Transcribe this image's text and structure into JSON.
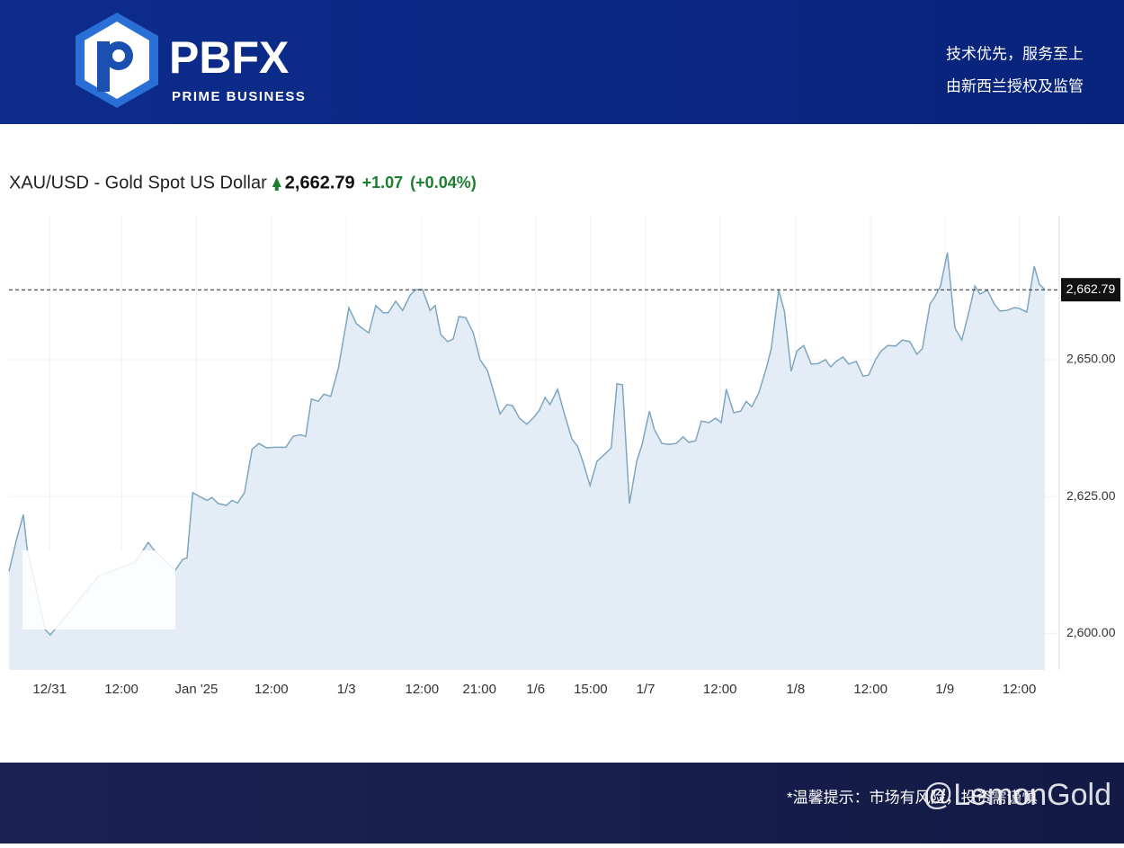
{
  "header": {
    "brand": "PBFX",
    "tagline": "PRIME BUSINESS",
    "slogan1": "技术优先，服务至上",
    "slogan2": "由新西兰授权及监管"
  },
  "footer": {
    "note": "*温馨提示：市场有风险，投资需谨慎",
    "watermark": "@LemonGold"
  },
  "chart_data": {
    "type": "area",
    "title": "XAU/USD - Gold Spot US Dollar",
    "change": "+1.07",
    "change_pct": "(+0.04%)",
    "last_price": {
      "value": 2662.79,
      "label": "2,662.79"
    },
    "color": "#7fa6bf",
    "fill": "#e4edf5",
    "x": [
      -6.5,
      -5.3,
      -4.2,
      -3.6,
      -0.7,
      0.1,
      7.9,
      13.7,
      15.8,
      16.5,
      20.1,
      21.3,
      22.0,
      22.9,
      24.0,
      25.2,
      26.0,
      27.0,
      28.3,
      29.2,
      30.1,
      31.2,
      32.4,
      33.5,
      34.7,
      36.1,
      37.8,
      39.0,
      40.1,
      41.0,
      41.9,
      43.0,
      43.9,
      45.0,
      46.2,
      47.9,
      49.1,
      50.2,
      51.1,
      52.2,
      53.4,
      54.2,
      55.4,
      56.5,
      57.7,
      58.6,
      59.7,
      60.9,
      61.7,
      62.6,
      63.7,
      64.6,
      65.5,
      66.6,
      67.8,
      68.9,
      70.1,
      72.1,
      73.2,
      74.1,
      75.2,
      76.4,
      77.6,
      78.4,
      79.3,
      80.1,
      81.3,
      82.4,
      83.6,
      84.5,
      85.3,
      86.5,
      87.6,
      88.8,
      89.9,
      90.8,
      91.7,
      92.8,
      94.0,
      94.8,
      96.0,
      96.8,
      98.0,
      99.1,
      100.3,
      101.4,
      102.3,
      103.4,
      104.3,
      105.5,
      106.6,
      107.5,
      108.3,
      109.5,
      110.6,
      111.5,
      112.4,
      113.5,
      114.7,
      115.5,
      116.7,
      117.6,
      118.7,
      119.6,
      120.7,
      121.9,
      123.0,
      124.2,
      125.0,
      125.9,
      127.0,
      127.9,
      129.1,
      130.2,
      131.1,
      132.2,
      133.1,
      134.2,
      135.4,
      136.5,
      137.7,
      138.8,
      139.7,
      140.9,
      141.7,
      142.6,
      143.7,
      144.9,
      146.0,
      147.2,
      148.1,
      148.9,
      150.1,
      151.2,
      152.1,
      153.2,
      154.4,
      155.2,
      156.4,
      157.6,
      158.4,
      159.3
    ],
    "values": [
      2611.3,
      2617.1,
      2621.7,
      2615.5,
      2600.7,
      2599.7,
      2610.5,
      2613.0,
      2616.6,
      2615.5,
      2611.5,
      2613.5,
      2613.8,
      2625.7,
      2625.0,
      2624.3,
      2624.8,
      2623.7,
      2623.4,
      2624.3,
      2623.8,
      2625.7,
      2633.6,
      2634.7,
      2633.9,
      2634.0,
      2634.0,
      2636.0,
      2636.3,
      2636.0,
      2642.8,
      2642.4,
      2643.7,
      2643.3,
      2648.4,
      2659.5,
      2656.6,
      2655.6,
      2654.9,
      2659.9,
      2658.6,
      2658.6,
      2660.7,
      2659.0,
      2661.8,
      2662.8,
      2662.8,
      2659.0,
      2659.9,
      2654.6,
      2653.3,
      2653.8,
      2657.9,
      2657.7,
      2654.9,
      2650.0,
      2648.0,
      2640.1,
      2641.8,
      2641.6,
      2639.3,
      2638.2,
      2639.6,
      2640.8,
      2643.1,
      2641.8,
      2644.6,
      2640.1,
      2635.5,
      2634.2,
      2631.6,
      2627.0,
      2631.4,
      2632.7,
      2633.9,
      2645.6,
      2645.4,
      2623.7,
      2631.6,
      2634.4,
      2640.6,
      2637.2,
      2634.7,
      2634.5,
      2634.7,
      2635.9,
      2634.9,
      2635.2,
      2638.8,
      2638.5,
      2639.3,
      2638.5,
      2644.6,
      2640.3,
      2640.6,
      2642.4,
      2641.4,
      2643.9,
      2648.4,
      2652.0,
      2662.7,
      2658.9,
      2647.9,
      2651.6,
      2652.6,
      2649.2,
      2649.3,
      2650.0,
      2648.7,
      2649.7,
      2650.5,
      2649.2,
      2649.7,
      2647.0,
      2647.2,
      2650.0,
      2651.6,
      2652.6,
      2652.5,
      2653.6,
      2653.3,
      2651.0,
      2652.0,
      2660.2,
      2661.5,
      2663.5,
      2669.6,
      2655.8,
      2653.6,
      2659.0,
      2663.5,
      2662.0,
      2662.7,
      2660.2,
      2658.9,
      2659.0,
      2659.5,
      2659.4,
      2658.7,
      2667.1,
      2663.8,
      2662.8
    ],
    "xlim": [
      -6.5,
      161.6
    ],
    "ylim": [
      2593.3,
      2676.3
    ],
    "xticks": [
      {
        "value": 0,
        "label": "12/31"
      },
      {
        "value": 11.5,
        "label": "12:00"
      },
      {
        "value": 23.5,
        "label": "Jan '25"
      },
      {
        "value": 35.5,
        "label": "12:00"
      },
      {
        "value": 47.5,
        "label": "1/3"
      },
      {
        "value": 59.6,
        "label": "12:00"
      },
      {
        "value": 68.8,
        "label": "21:00"
      },
      {
        "value": 77.8,
        "label": "1/6"
      },
      {
        "value": 86.6,
        "label": "15:00"
      },
      {
        "value": 95.4,
        "label": "1/7"
      },
      {
        "value": 107.3,
        "label": "12:00"
      },
      {
        "value": 119.4,
        "label": "1/8"
      },
      {
        "value": 131.4,
        "label": "12:00"
      },
      {
        "value": 143.3,
        "label": "1/9"
      },
      {
        "value": 155.2,
        "label": "12:00"
      }
    ],
    "yticks": [
      {
        "value": 2600,
        "label": "2,600.00"
      },
      {
        "value": 2625,
        "label": "2,625.00"
      },
      {
        "value": 2650,
        "label": "2,650.00"
      }
    ],
    "grid": true
  }
}
